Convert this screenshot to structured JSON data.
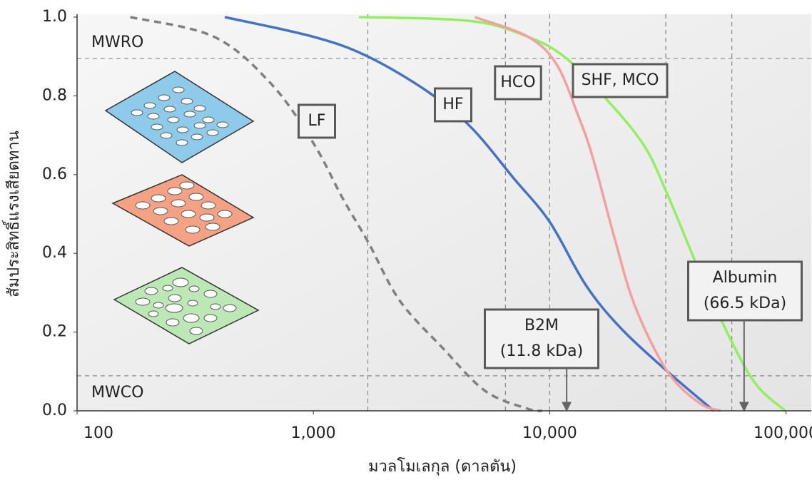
{
  "chart_data": {
    "type": "line",
    "x_label": "มวลโมเลกุล (ดาลตัน)",
    "y_label": "สัมประสิทธิ์แรงเสียดทาน",
    "x_scale": "log",
    "xlim": [
      100,
      128000
    ],
    "xticks": [
      100,
      {
        "value": 1000,
        "label": "1,000"
      },
      {
        "value": 10000,
        "label": "10,000"
      },
      {
        "value": 100000,
        "label": "100,000"
      }
    ],
    "ylim": [
      0,
      1
    ],
    "yticks": [
      {
        "value": 0,
        "label": "0.0"
      },
      0.2,
      0.4,
      0.6,
      0.8,
      {
        "value": 1,
        "label": "1.0"
      }
    ],
    "hlines": [
      {
        "label": "MWRO",
        "value": 0.895
      },
      {
        "label": "MWCO",
        "value": 0.089
      }
    ],
    "vlines": [
      1700,
      6500,
      10000,
      31000,
      59000
    ],
    "markers": [
      {
        "label": [
          "B2M",
          "(11.8 kDa)"
        ],
        "x": 11800
      },
      {
        "label": [
          "Albumin",
          "(66.5 kDa)"
        ],
        "x": 66500
      }
    ],
    "series": [
      {
        "name": "LF",
        "color": "#808080",
        "style": "dashed",
        "x": [
          168,
          380,
          664,
          1000,
          1330,
          1700,
          2320,
          3520,
          5350,
          8100,
          9300
        ],
        "values": [
          1.0,
          0.95,
          0.83,
          0.68,
          0.54,
          0.43,
          0.28,
          0.16,
          0.05,
          0.005,
          0.0
        ]
      },
      {
        "name": "HF",
        "color": "#4472c4",
        "style": "solid",
        "x": [
          422,
          1000,
          1700,
          3060,
          4650,
          7060,
          10000,
          14200,
          20000,
          31500,
          49500
        ],
        "values": [
          1.0,
          0.95,
          0.9,
          0.81,
          0.72,
          0.59,
          0.48,
          0.32,
          0.21,
          0.1,
          0.0
        ]
      },
      {
        "name": "HCO",
        "color": "#92f060",
        "style": "solid",
        "x": [
          1560,
          4650,
          8100,
          11500,
          16300,
          24700,
          31500,
          43000,
          59000,
          75200,
          99400
        ],
        "values": [
          1.0,
          0.99,
          0.95,
          0.9,
          0.81,
          0.68,
          0.55,
          0.355,
          0.175,
          0.065,
          0.0
        ]
      },
      {
        "name": "SHF, MCO",
        "color": "#f4a0a0",
        "style": "solid",
        "x": [
          4820,
          8100,
          10700,
          13200,
          15200,
          18700,
          23000,
          31500,
          43000,
          53000
        ],
        "values": [
          1.0,
          0.95,
          0.88,
          0.75,
          0.645,
          0.445,
          0.265,
          0.1,
          0.02,
          0.0
        ]
      }
    ]
  }
}
